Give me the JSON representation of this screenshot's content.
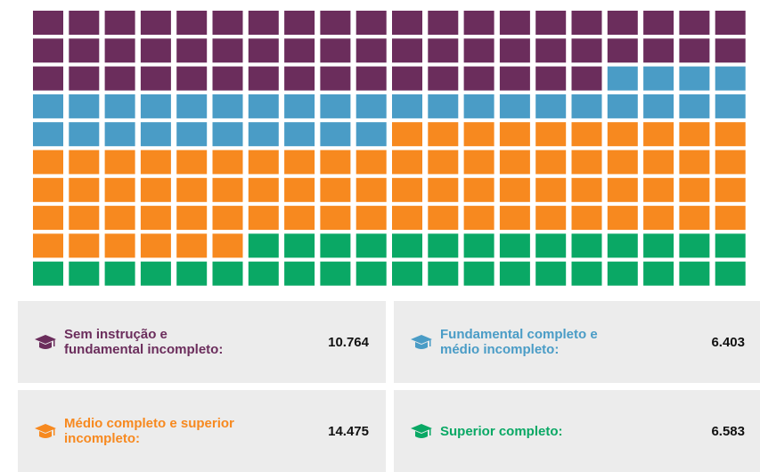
{
  "chart_data": {
    "type": "waffle",
    "rows": 10,
    "columns": 20,
    "series": [
      {
        "name": "Sem instrução e\nfundamental incompleto:",
        "color": "#6b2d5c",
        "values": [
          10764
        ],
        "value_labels": [
          "10.764"
        ]
      },
      {
        "name": "Fundamental completo e\nmédio incompleto:",
        "color": "#4a9cc6",
        "values": [
          6403
        ],
        "value_labels": [
          "6.403"
        ]
      },
      {
        "name": "Médio completo e superior\nincompleto:",
        "color": "#f7891f",
        "values": [
          14475
        ],
        "value_labels": [
          "14.475"
        ]
      },
      {
        "name": "Superior completo:",
        "color": "#0aa865",
        "values": [
          6583
        ],
        "value_labels": [
          "6.583"
        ]
      }
    ]
  }
}
